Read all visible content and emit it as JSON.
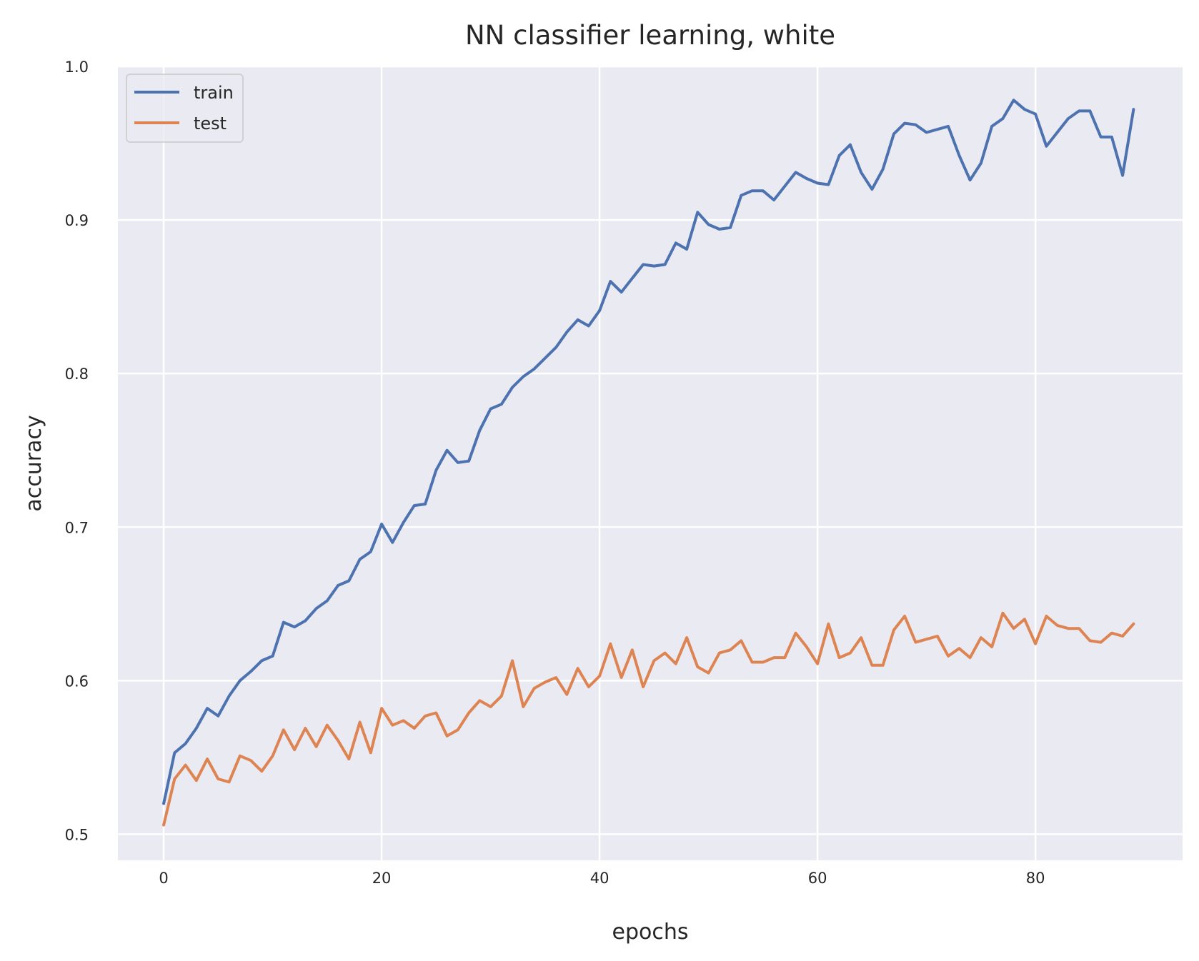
{
  "chart_data": {
    "type": "line",
    "title": "NN classifier learning, white",
    "xlabel": "epochs",
    "ylabel": "accuracy",
    "xlim": [
      -4.2,
      93.5
    ],
    "ylim": [
      0.483,
      1.0
    ],
    "xticks": [
      0,
      20,
      40,
      60,
      80
    ],
    "yticks": [
      0.5,
      0.6,
      0.7,
      0.8,
      0.9,
      1.0
    ],
    "xtick_labels": [
      "0",
      "20",
      "40",
      "60",
      "80"
    ],
    "ytick_labels": [
      "0.5",
      "0.6",
      "0.7",
      "0.8",
      "0.9",
      "1.0"
    ],
    "grid": true,
    "legend_position": "top-left",
    "background": "#eaeaf2",
    "grid_color": "#ffffff",
    "series": [
      {
        "name": "train",
        "color": "#4c72b0",
        "x": [
          0,
          1,
          2,
          3,
          4,
          5,
          6,
          7,
          8,
          9,
          10,
          11,
          12,
          13,
          14,
          15,
          16,
          17,
          18,
          19,
          20,
          21,
          22,
          23,
          24,
          25,
          26,
          27,
          28,
          29,
          30,
          31,
          32,
          33,
          34,
          35,
          36,
          37,
          38,
          39,
          40,
          41,
          42,
          43,
          44,
          45,
          46,
          47,
          48,
          49,
          50,
          51,
          52,
          53,
          54,
          55,
          56,
          57,
          58,
          59,
          60,
          61,
          62,
          63,
          64,
          65,
          66,
          67,
          68,
          69,
          70,
          71,
          72,
          73,
          74,
          75,
          76,
          77,
          78,
          79,
          80,
          81,
          82,
          83,
          84,
          85,
          86,
          87,
          88,
          89
        ],
        "values": [
          0.52,
          0.553,
          0.559,
          0.569,
          0.582,
          0.577,
          0.59,
          0.6,
          0.606,
          0.613,
          0.616,
          0.638,
          0.635,
          0.639,
          0.647,
          0.652,
          0.662,
          0.665,
          0.679,
          0.684,
          0.702,
          0.69,
          0.703,
          0.714,
          0.715,
          0.737,
          0.75,
          0.742,
          0.743,
          0.763,
          0.777,
          0.78,
          0.791,
          0.798,
          0.803,
          0.81,
          0.817,
          0.827,
          0.835,
          0.831,
          0.841,
          0.86,
          0.853,
          0.862,
          0.871,
          0.87,
          0.871,
          0.885,
          0.881,
          0.905,
          0.897,
          0.894,
          0.895,
          0.916,
          0.919,
          0.919,
          0.913,
          0.922,
          0.931,
          0.927,
          0.924,
          0.923,
          0.942,
          0.949,
          0.931,
          0.92,
          0.933,
          0.956,
          0.963,
          0.962,
          0.957,
          0.959,
          0.961,
          0.942,
          0.926,
          0.937,
          0.961,
          0.966,
          0.978,
          0.972,
          0.969,
          0.948,
          0.957,
          0.966,
          0.971,
          0.971,
          0.954,
          0.954,
          0.929,
          0.972
        ]
      },
      {
        "name": "test",
        "color": "#dd8452",
        "x": [
          0,
          1,
          2,
          3,
          4,
          5,
          6,
          7,
          8,
          9,
          10,
          11,
          12,
          13,
          14,
          15,
          16,
          17,
          18,
          19,
          20,
          21,
          22,
          23,
          24,
          25,
          26,
          27,
          28,
          29,
          30,
          31,
          32,
          33,
          34,
          35,
          36,
          37,
          38,
          39,
          40,
          41,
          42,
          43,
          44,
          45,
          46,
          47,
          48,
          49,
          50,
          51,
          52,
          53,
          54,
          55,
          56,
          57,
          58,
          59,
          60,
          61,
          62,
          63,
          64,
          65,
          66,
          67,
          68,
          69,
          70,
          71,
          72,
          73,
          74,
          75,
          76,
          77,
          78,
          79,
          80,
          81,
          82,
          83,
          84,
          85,
          86,
          87,
          88,
          89
        ],
        "values": [
          0.506,
          0.536,
          0.545,
          0.535,
          0.549,
          0.536,
          0.534,
          0.551,
          0.548,
          0.541,
          0.551,
          0.568,
          0.555,
          0.569,
          0.557,
          0.571,
          0.561,
          0.549,
          0.573,
          0.553,
          0.582,
          0.571,
          0.574,
          0.569,
          0.577,
          0.579,
          0.564,
          0.568,
          0.579,
          0.587,
          0.583,
          0.59,
          0.613,
          0.583,
          0.595,
          0.599,
          0.602,
          0.591,
          0.608,
          0.596,
          0.603,
          0.624,
          0.602,
          0.62,
          0.596,
          0.613,
          0.618,
          0.611,
          0.628,
          0.609,
          0.605,
          0.618,
          0.62,
          0.626,
          0.612,
          0.612,
          0.615,
          0.615,
          0.631,
          0.622,
          0.611,
          0.637,
          0.615,
          0.618,
          0.628,
          0.61,
          0.61,
          0.633,
          0.642,
          0.625,
          0.627,
          0.629,
          0.616,
          0.621,
          0.615,
          0.628,
          0.622,
          0.644,
          0.634,
          0.64,
          0.624,
          0.642,
          0.636,
          0.634,
          0.634,
          0.626,
          0.625,
          0.631,
          0.629,
          0.637
        ]
      }
    ]
  }
}
